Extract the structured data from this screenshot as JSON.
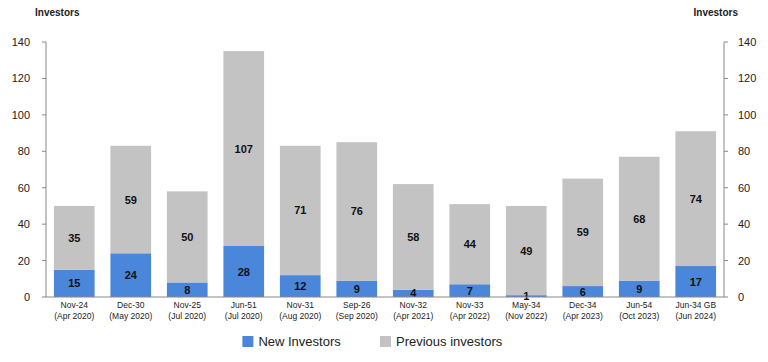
{
  "chart_data": {
    "type": "bar",
    "stacked": true,
    "data_labels": true,
    "legend": "bottom",
    "y_label": "Investors",
    "y2_label": "Investors",
    "categories": [
      "Nov-24 (Apr 2020)",
      "Dec-30 (May 2020)",
      "Nov-25 (Jul 2020)",
      "Jun-51 (Jul 2020)",
      "Nov-31 (Aug 2020)",
      "Sep-26 (Sep 2020)",
      "Nov-32 (Apr 2021)",
      "Nov-33 (Apr 2022)",
      "May-34 (Nov 2022)",
      "Dec-34 (Apr 2023)",
      "Jun-54 (Oct 2023)",
      "Jun-34 GB (Jun 2024)"
    ],
    "series": [
      {
        "name": "New Investors",
        "color": "#4a86d9",
        "values": [
          15,
          24,
          8,
          28,
          12,
          9,
          4,
          7,
          1,
          6,
          9,
          17
        ]
      },
      {
        "name": "Previous investors",
        "color": "#c3c3c3",
        "values": [
          35,
          59,
          50,
          107,
          71,
          76,
          58,
          44,
          49,
          59,
          68,
          74
        ]
      }
    ],
    "ylim": [
      0,
      140
    ],
    "yticks": [
      0,
      20,
      40,
      60,
      80,
      100,
      120,
      140
    ],
    "y2lim": [
      0,
      140
    ],
    "y2ticks": [
      0,
      20,
      40,
      60,
      80,
      100,
      120,
      140
    ]
  }
}
